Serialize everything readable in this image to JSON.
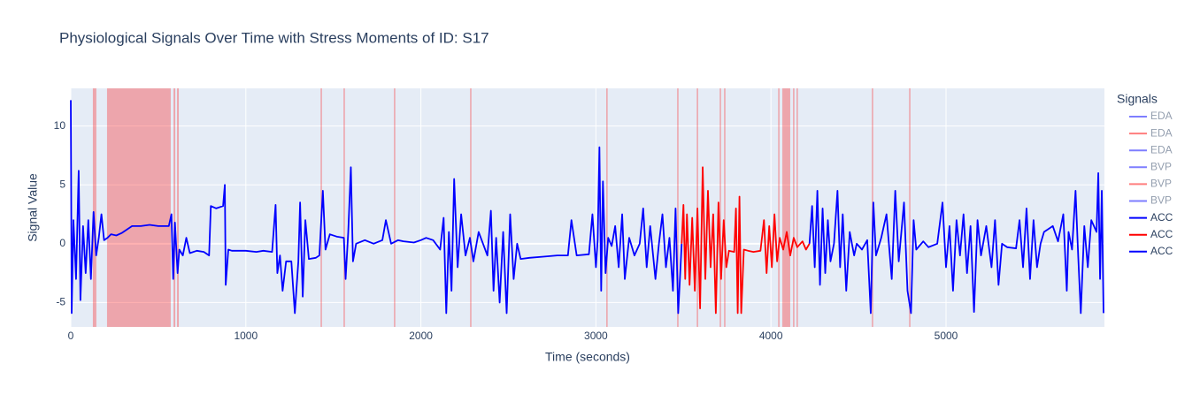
{
  "chart_data": {
    "type": "line",
    "title": "Physiological Signals Over Time with Stress Moments of ID: S17",
    "x_label": "Time (seconds)",
    "y_label": "Signal Value",
    "legend_title": "Signals",
    "legend_position": "right",
    "xlim": [
      0,
      5905
    ],
    "ylim": [
      -7.07,
      13.2
    ],
    "xticks": [
      0,
      1000,
      2000,
      3000,
      4000,
      5000
    ],
    "yticks": [
      -5,
      0,
      5,
      10
    ],
    "grid": true,
    "background": "#e5ecf6",
    "stress_color": "#ff0000",
    "stress_opacity": 0.3,
    "stress_periods": [
      [
        126,
        146
      ],
      [
        207,
        571
      ],
      [
        587,
        597
      ],
      [
        607,
        617
      ],
      [
        1427,
        1435
      ],
      [
        1558,
        1566
      ],
      [
        1846,
        1854
      ],
      [
        2281,
        2289
      ],
      [
        3059,
        3067
      ],
      [
        3464,
        3472
      ],
      [
        3576,
        3584
      ],
      [
        3707,
        3715
      ],
      [
        3732,
        3740
      ],
      [
        4041,
        4049
      ],
      [
        4065,
        4110
      ],
      [
        4126,
        4134
      ],
      [
        4146,
        4154
      ],
      [
        4576,
        4584
      ],
      [
        4789,
        4797
      ]
    ],
    "series": [
      {
        "name": "EDA",
        "color": "#0000ff",
        "visible": "legendonly"
      },
      {
        "name": "EDA",
        "color": "#ff0000",
        "visible": "legendonly"
      },
      {
        "name": "EDA",
        "color": "#0000ff",
        "visible": "legendonly"
      },
      {
        "name": "BVP",
        "color": "#0000ff",
        "visible": "legendonly"
      },
      {
        "name": "BVP",
        "color": "#ff0000",
        "visible": "legendonly"
      },
      {
        "name": "BVP",
        "color": "#0000ff",
        "visible": "legendonly"
      },
      {
        "name": "ACC",
        "color": "#0000ff",
        "visible": true,
        "x": [
          0,
          5,
          15,
          30,
          45,
          55,
          70,
          85,
          100,
          115,
          130,
          145,
          160,
          175,
          190,
          210,
          230,
          260,
          290,
          320,
          350,
          400,
          450,
          500,
          560,
          575,
          585,
          595,
          610,
          620,
          640,
          660,
          680,
          720,
          760,
          790,
          800,
          830,
          870,
          880,
          885,
          900,
          920,
          960,
          1000,
          1060,
          1100,
          1150,
          1170,
          1180,
          1195,
          1210,
          1230,
          1260,
          1280,
          1300,
          1310,
          1325,
          1340,
          1360,
          1400,
          1420,
          1440,
          1455,
          1480,
          1520,
          1560,
          1570,
          1585,
          1600,
          1612,
          1630,
          1680,
          1730,
          1780,
          1800,
          1830,
          1870,
          1900,
          1960,
          2000,
          2030,
          2070,
          2110,
          2130,
          2145,
          2160,
          2175,
          2190,
          2210,
          2230,
          2255,
          2280,
          2300,
          2330,
          2380,
          2400,
          2415,
          2430,
          2450,
          2470,
          2490,
          2510,
          2530,
          2550,
          2570,
          2620,
          2700,
          2780,
          2840,
          2860,
          2890,
          2960,
          2980,
          3000,
          3010,
          3020,
          3030,
          3040,
          3055,
          3070,
          3090,
          3110,
          3130,
          3150,
          3165,
          3190,
          3220,
          3250,
          3270,
          3290,
          3310,
          3340,
          3360,
          3380,
          3400,
          3420,
          3440,
          3455,
          3470,
          3490
        ],
        "values": [
          12.2,
          -5.9,
          2,
          -3,
          6.2,
          -4.8,
          1.5,
          -2.5,
          2,
          -3,
          2.7,
          -1,
          0.5,
          2.5,
          0.3,
          0.5,
          0.8,
          0.7,
          0.9,
          1.2,
          1.5,
          1.5,
          1.6,
          1.5,
          1.5,
          2.5,
          -3,
          1.8,
          -2.5,
          -0.5,
          -1,
          0.5,
          -0.8,
          -0.6,
          -0.7,
          -1,
          3.2,
          3,
          3.2,
          5,
          -3.5,
          -0.5,
          -0.6,
          -0.6,
          -0.6,
          -0.7,
          -0.6,
          -0.7,
          3.3,
          -2.5,
          -1,
          -4,
          -1.5,
          -1.5,
          -5.9,
          -1.5,
          3.5,
          -4.5,
          2,
          -1.3,
          -1.2,
          -1,
          4.5,
          -0.5,
          0.8,
          0.6,
          0.5,
          -3,
          1,
          6.5,
          -1.5,
          0,
          0.3,
          0,
          0.3,
          2,
          0,
          0.3,
          0.2,
          0.1,
          0.3,
          0.5,
          0.3,
          -0.5,
          2.2,
          -5.9,
          1,
          -4,
          5.5,
          -2,
          2.5,
          -1,
          0.5,
          -1.5,
          1,
          -1,
          2.8,
          -4,
          0.5,
          -5,
          1,
          -5.9,
          2.5,
          -3,
          0,
          -1.3,
          -1.2,
          -1.1,
          -1,
          -1,
          2,
          -1,
          -0.9,
          2.5,
          -2,
          0.3,
          8.2,
          -4,
          5.3,
          -2.5,
          0.5,
          -0.2,
          1.5,
          -2,
          2.5,
          -3,
          0.5,
          -1,
          0,
          3,
          -2,
          1.5,
          -3,
          0,
          2.5,
          -2,
          0.5,
          -4,
          3,
          -5.9,
          0
        ]
      },
      {
        "name": "ACC",
        "color": "#ff0000",
        "visible": true,
        "x": [
          3490,
          3500,
          3510,
          3520,
          3535,
          3550,
          3565,
          3580,
          3595,
          3610,
          3625,
          3640,
          3655,
          3670,
          3685,
          3700,
          3715,
          3730,
          3745,
          3760,
          3790,
          3800,
          3810,
          3820,
          3830,
          3845,
          3870,
          3900,
          3940,
          3960,
          3975,
          3990,
          4005,
          4020,
          4035,
          4050,
          4070,
          4090,
          4110,
          4130,
          4150,
          4180,
          4200,
          4220
        ],
        "values": [
          0,
          3.3,
          -3,
          2.5,
          -3.5,
          2.2,
          -4,
          3,
          -5.5,
          6.5,
          -3,
          4.5,
          -2,
          2.5,
          -5.9,
          3.5,
          -3,
          2,
          -2,
          -0.6,
          -0.7,
          3,
          -5.9,
          4,
          -5.9,
          -0.5,
          -0.6,
          -0.7,
          -0.6,
          2,
          -2.5,
          1.5,
          -2,
          2.5,
          -1.5,
          0.5,
          -0.5,
          1,
          -1,
          0.5,
          -0.3,
          0.2,
          -0.5,
          0
        ]
      },
      {
        "name": "ACC",
        "color": "#0000ff",
        "visible": true,
        "x": [
          4220,
          4235,
          4250,
          4265,
          4280,
          4295,
          4310,
          4325,
          4340,
          4360,
          4380,
          4395,
          4410,
          4430,
          4450,
          4475,
          4490,
          4520,
          4550,
          4570,
          4585,
          4600,
          4630,
          4660,
          4690,
          4710,
          4730,
          4760,
          4780,
          4800,
          4815,
          4830,
          4870,
          4900,
          4950,
          4980,
          5000,
          5020,
          5040,
          5060,
          5080,
          5100,
          5120,
          5140,
          5160,
          5180,
          5200,
          5230,
          5260,
          5280,
          5300,
          5320,
          5350,
          5400,
          5420,
          5440,
          5460,
          5480,
          5500,
          5520,
          5540,
          5560,
          5580,
          5610,
          5640,
          5670,
          5690,
          5700,
          5720,
          5740,
          5755,
          5770,
          5790,
          5810,
          5830,
          5860,
          5870,
          5880,
          5890,
          5900
        ],
        "values": [
          0,
          3.2,
          -2,
          4.5,
          -3.5,
          3,
          -2.5,
          2,
          -1.5,
          0,
          4.5,
          -2,
          2.5,
          -4,
          1,
          -1,
          0,
          -0.5,
          0.3,
          -5.9,
          3.5,
          -1,
          0.5,
          2.5,
          -3,
          4.5,
          -1.5,
          3.5,
          -4,
          -5.9,
          2,
          -0.5,
          0.2,
          -0.3,
          0,
          3.5,
          -2,
          1.5,
          -4,
          2,
          -1,
          2.5,
          -2.5,
          1.5,
          -5.8,
          2,
          -1,
          1.5,
          -2,
          2,
          -3.5,
          0,
          -0.3,
          -0.4,
          2,
          -2,
          3,
          -3,
          2,
          -2,
          0,
          1,
          1.2,
          1.5,
          0.2,
          2.5,
          -4,
          1,
          -0.5,
          4.5,
          -1,
          -5.9,
          1.5,
          -2,
          2,
          1,
          6,
          -3,
          4.5,
          -5.9
        ]
      }
    ]
  }
}
